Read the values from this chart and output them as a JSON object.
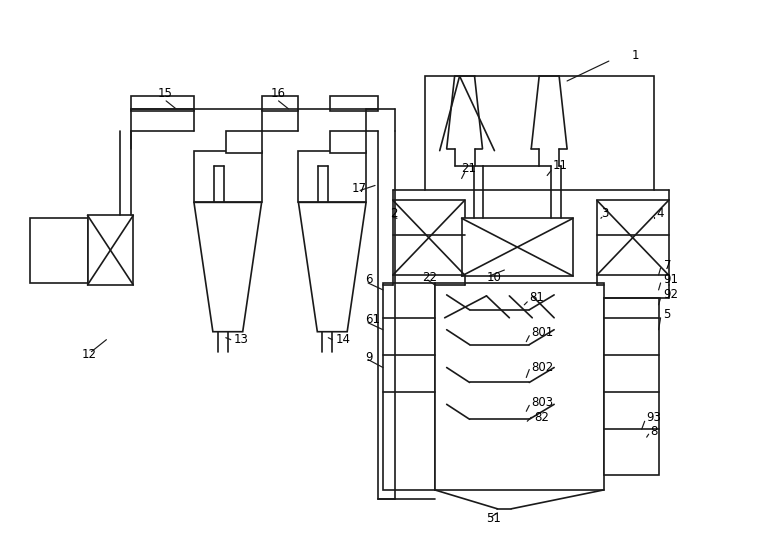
{
  "bg": "#ffffff",
  "lc": "#1a1a1a",
  "lw": 1.2,
  "fw": 7.66,
  "fh": 5.49,
  "dpi": 100
}
